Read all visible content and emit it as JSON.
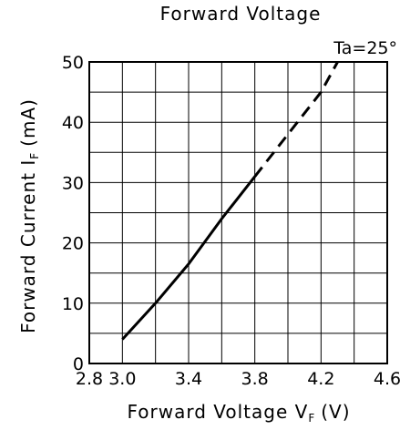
{
  "chart_data": {
    "type": "line",
    "title": "Forward Voltage",
    "xlabel": {
      "main": "Forward Voltage V",
      "sub": "F",
      "unit": "(V)"
    },
    "ylabel": {
      "main": "Forward Current I",
      "sub": "F",
      "unit": "(mA)"
    },
    "annotation": "Ta=25°",
    "xlim": [
      2.8,
      4.6
    ],
    "ylim": [
      0,
      50
    ],
    "x_ticks": [
      2.8,
      3.0,
      3.4,
      3.8,
      4.2,
      4.6
    ],
    "x_tick_labels": [
      "2.8",
      "3.0",
      "3.4",
      "3.8",
      "4.2",
      "4.6"
    ],
    "y_ticks": [
      0,
      10,
      20,
      30,
      40,
      50
    ],
    "y_tick_labels": [
      "0",
      "10",
      "20",
      "30",
      "40",
      "50"
    ],
    "grid": true,
    "series": [
      {
        "style": "solid",
        "points": [
          [
            3.0,
            4
          ],
          [
            3.2,
            10
          ],
          [
            3.4,
            16.5
          ],
          [
            3.6,
            24
          ],
          [
            3.8,
            31
          ]
        ]
      },
      {
        "style": "dashed",
        "points": [
          [
            3.8,
            31
          ],
          [
            4.0,
            38
          ],
          [
            4.2,
            45
          ],
          [
            4.3,
            50
          ]
        ]
      }
    ]
  }
}
